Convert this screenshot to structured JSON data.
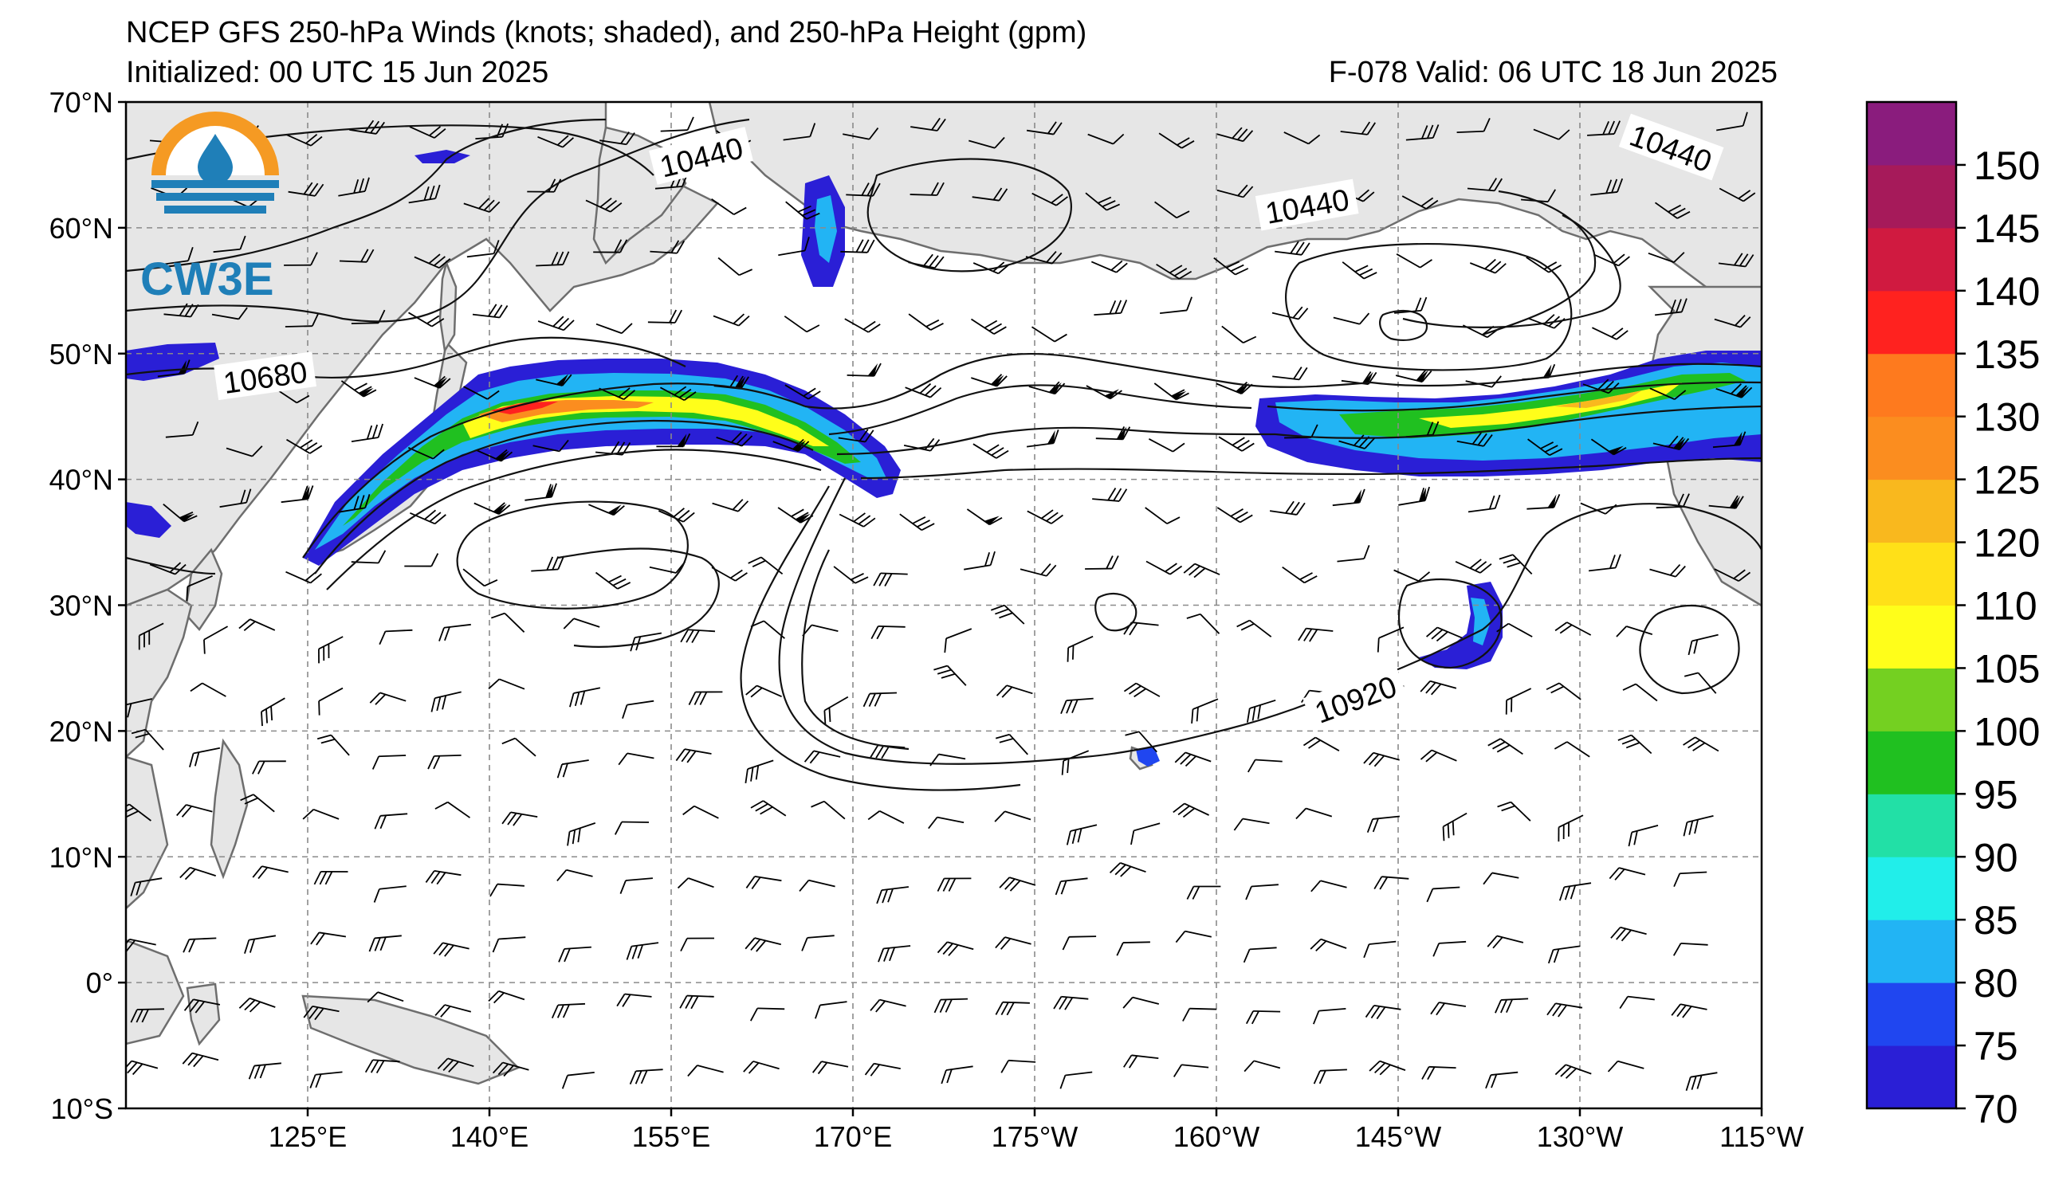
{
  "header": {
    "title": "NCEP GFS 250-hPa Winds (knots; shaded), and 250-hPa Height (gpm)",
    "initialized": "Initialized: 00 UTC 15 Jun 2025",
    "valid": "F-078  Valid: 06 UTC 18 Jun 2025"
  },
  "logo": {
    "text": "CW3E",
    "colors": {
      "top": "#f59a23",
      "bottom": "#1f7fb8"
    }
  },
  "map": {
    "lon_range": [
      110,
      245
    ],
    "lat_range": [
      -10,
      70
    ],
    "lat_labels": [
      {
        "lat": 70,
        "label": "70°N"
      },
      {
        "lat": 60,
        "label": "60°N"
      },
      {
        "lat": 50,
        "label": "50°N"
      },
      {
        "lat": 40,
        "label": "40°N"
      },
      {
        "lat": 30,
        "label": "30°N"
      },
      {
        "lat": 20,
        "label": "20°N"
      },
      {
        "lat": 10,
        "label": "10°N"
      },
      {
        "lat": 0,
        "label": "0°"
      },
      {
        "lat": -10,
        "label": "10°S"
      }
    ],
    "lon_labels": [
      {
        "lon": 125,
        "label": "125°E"
      },
      {
        "lon": 140,
        "label": "140°E"
      },
      {
        "lon": 155,
        "label": "155°E"
      },
      {
        "lon": 170,
        "label": "170°E"
      },
      {
        "lon": 185,
        "label": "175°W"
      },
      {
        "lon": 200,
        "label": "160°W"
      },
      {
        "lon": 215,
        "label": "145°W"
      },
      {
        "lon": 230,
        "label": "130°W"
      },
      {
        "lon": 245,
        "label": "115°W"
      }
    ],
    "contour_labels": [
      {
        "text": "10440",
        "lon": 157.5,
        "lat": 65.6,
        "rot": -14
      },
      {
        "text": "10440",
        "lon": 207.5,
        "lat": 61.7,
        "rot": -10
      },
      {
        "text": "10440",
        "lon": 237.5,
        "lat": 66.3,
        "rot": 20
      },
      {
        "text": "10680",
        "lon": 121.5,
        "lat": 48.1,
        "rot": -8
      },
      {
        "text": "10920",
        "lon": 211.5,
        "lat": 22.5,
        "rot": -20
      }
    ],
    "colors": {
      "land": "#e6e6e6",
      "coast": "#6e6e6e",
      "grid": "#8a8a8a"
    }
  },
  "colorbar": {
    "ticks": [
      "70",
      "75",
      "80",
      "85",
      "90",
      "95",
      "100",
      "105",
      "110",
      "120",
      "125",
      "130",
      "135",
      "140",
      "145",
      "150"
    ],
    "colors": [
      "#2a1fd6",
      "#2046f0",
      "#22b4f4",
      "#21eeea",
      "#22e0a6",
      "#20c020",
      "#74d021",
      "#fffe1a",
      "#ffe018",
      "#f9b81e",
      "#fb8d1f",
      "#fe7a1e",
      "#ff221f",
      "#d01a40",
      "#a61a5a",
      "#8a1c7d"
    ]
  }
}
